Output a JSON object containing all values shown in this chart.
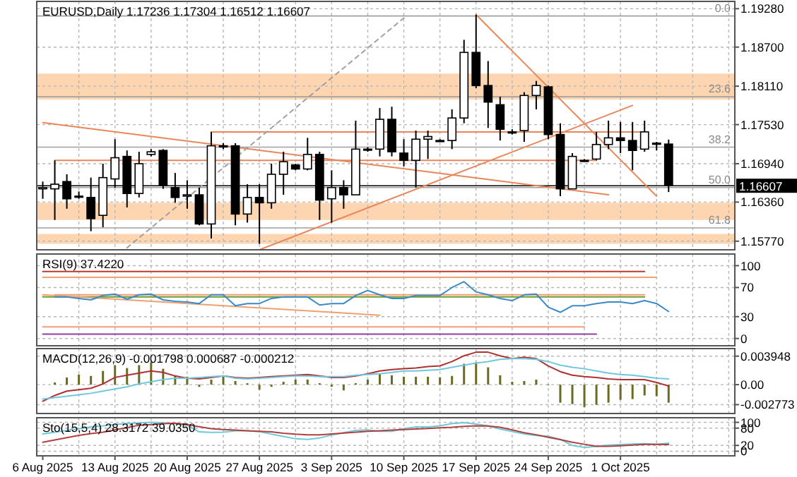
{
  "chart_data": [
    {
      "type": "candlestick",
      "title": "EURUSD,Daily 1.17236 1.17304 1.16512 1.16607",
      "categories": [
        null,
        null,
        null,
        null,
        null,
        null,
        null,
        null,
        null,
        null,
        null,
        null,
        null,
        null,
        null,
        null,
        null,
        null,
        null,
        null,
        null,
        null,
        null,
        null,
        null,
        null,
        null,
        null,
        null,
        null,
        null,
        null,
        null,
        null,
        null,
        null,
        null,
        null,
        null,
        null,
        null,
        null,
        null,
        null,
        null,
        null,
        null,
        null,
        null,
        null,
        null,
        null,
        null,
        null,
        null,
        null,
        null,
        null
      ],
      "ohlc": [
        [
          1.1656,
          1.1667,
          1.1641,
          1.1658
        ],
        [
          1.1656,
          1.1699,
          1.1609,
          1.1663
        ],
        [
          1.1667,
          1.1678,
          1.1626,
          1.1641
        ],
        [
          1.1645,
          1.1652,
          1.1641,
          1.1645
        ],
        [
          1.1643,
          1.1673,
          1.1592,
          1.1611
        ],
        [
          1.1616,
          1.1694,
          1.1598,
          1.1673
        ],
        [
          1.1671,
          1.1731,
          1.1658,
          1.1703
        ],
        [
          1.1705,
          1.1714,
          1.1628,
          1.1649
        ],
        [
          1.1649,
          1.1712,
          1.1643,
          1.1694
        ],
        [
          1.1708,
          1.1716,
          1.1705,
          1.1712
        ],
        [
          1.1714,
          1.1716,
          1.1656,
          1.1661
        ],
        [
          1.1658,
          1.168,
          1.1635,
          1.1643
        ],
        [
          1.1645,
          1.1669,
          1.1626,
          1.1647
        ],
        [
          1.1647,
          1.1658,
          1.1601,
          1.1603
        ],
        [
          1.1603,
          1.1742,
          1.1581,
          1.1721
        ],
        [
          1.1721,
          1.1725,
          1.1716,
          1.1721
        ],
        [
          1.1721,
          1.1725,
          1.1601,
          1.1618
        ],
        [
          1.1618,
          1.1663,
          1.1605,
          1.1643
        ],
        [
          1.1643,
          1.1663,
          1.1573,
          1.1635
        ],
        [
          1.1635,
          1.1694,
          1.1626,
          1.1678
        ],
        [
          1.1678,
          1.1712,
          1.1647,
          1.1697
        ],
        [
          1.1692,
          1.1694,
          1.1684,
          1.1686
        ],
        [
          1.1686,
          1.1733,
          1.1684,
          1.1708
        ],
        [
          1.1708,
          1.1712,
          1.1609,
          1.1639
        ],
        [
          1.1641,
          1.1684,
          1.1605,
          1.1658
        ],
        [
          1.1658,
          1.1669,
          1.1626,
          1.1647
        ],
        [
          1.1647,
          1.1759,
          1.1647,
          1.1716
        ],
        [
          1.1716,
          1.1719,
          1.1712,
          1.1716
        ],
        [
          1.1716,
          1.1778,
          1.1705,
          1.1761
        ],
        [
          1.1761,
          1.178,
          1.1705,
          1.1712
        ],
        [
          1.171,
          1.1731,
          1.169,
          1.1699
        ],
        [
          1.1699,
          1.1744,
          1.1658,
          1.1731
        ],
        [
          1.1731,
          1.1744,
          1.1701,
          1.1735
        ],
        [
          1.1729,
          1.1731,
          1.1727,
          1.1729
        ],
        [
          1.1729,
          1.1776,
          1.1716,
          1.1763
        ],
        [
          1.1763,
          1.1881,
          1.1755,
          1.1862
        ],
        [
          1.1862,
          1.1919,
          1.1808,
          1.1812
        ],
        [
          1.1812,
          1.1849,
          1.1748,
          1.1787
        ],
        [
          1.1783,
          1.1795,
          1.1729,
          1.1746
        ],
        [
          1.1742,
          1.1746,
          1.1738,
          1.1742
        ],
        [
          1.1744,
          1.1802,
          1.1727,
          1.1797
        ],
        [
          1.1797,
          1.1819,
          1.1776,
          1.1812
        ],
        [
          1.181,
          1.1812,
          1.1731,
          1.1738
        ],
        [
          1.1738,
          1.1755,
          1.1645,
          1.1656
        ],
        [
          1.1656,
          1.171,
          1.1656,
          1.1705
        ],
        [
          1.1699,
          1.1701,
          1.1697,
          1.1699
        ],
        [
          1.1701,
          1.1742,
          1.1699,
          1.1723
        ],
        [
          1.1723,
          1.1759,
          1.1716,
          1.1733
        ],
        [
          1.1733,
          1.1757,
          1.171,
          1.1729
        ],
        [
          1.1729,
          1.1757,
          1.1684,
          1.1714
        ],
        [
          1.1716,
          1.1759,
          1.1712,
          1.1742
        ],
        [
          1.1725,
          1.1727,
          1.1714,
          1.1725
        ],
        [
          1.17236,
          1.17304,
          1.16512,
          1.16607
        ],
        null,
        null,
        null,
        null,
        null
      ],
      "ylim": [
        1.1564,
        1.1939
      ],
      "yticks": [
        {
          "value": 1.1928,
          "label": "1.19280"
        },
        {
          "value": 1.187,
          "label": "1.18700"
        },
        {
          "value": 1.1811,
          "label": "1.18110"
        },
        {
          "value": 1.1753,
          "label": "1.17530"
        },
        {
          "value": 1.1694,
          "label": "1.16940"
        },
        {
          "value": 1.1636,
          "label": "1.16360"
        },
        {
          "value": 1.1577,
          "label": "1.15770"
        }
      ],
      "grid": true,
      "tick_labels": "y",
      "bands": [
        {
          "axis": "y",
          "from": 1.1791,
          "to": 1.183,
          "color": "#fdd5b1"
        },
        {
          "axis": "y",
          "from": 1.1609,
          "to": 1.1635,
          "color": "#fdd5b1"
        },
        {
          "axis": "y",
          "from": 1.1573,
          "to": 1.1588,
          "color": "#fdd5b1"
        }
      ],
      "ref_lines": [
        {
          "axis": "y",
          "value": 1.1917,
          "color": "#a0a0a0"
        },
        {
          "axis": "y",
          "value": 1.1795,
          "color": "#a0a0a0"
        },
        {
          "axis": "y",
          "value": 1.1719,
          "color": "#a0a0a0"
        },
        {
          "axis": "y",
          "value": 1.1658,
          "color": "#a0a0a0"
        },
        {
          "axis": "y",
          "value": 1.1597,
          "color": "#a0a0a0"
        },
        {
          "axis": "y",
          "value": 1.16607,
          "label": "1.16607",
          "color": "#000000"
        }
      ],
      "annotations": [
        {
          "text": "0.0",
          "y": 1.1917
        },
        {
          "text": "23.6",
          "y": 1.1795
        },
        {
          "text": "38.2",
          "y": 1.1719
        },
        {
          "text": "50.0",
          "y": 1.1658
        },
        {
          "text": "61.8",
          "y": 1.1597
        }
      ],
      "series": [
        {
          "type": "line",
          "color": "#e8875a",
          "values": [
            1.1756,
            null,
            null,
            null,
            null,
            null,
            null,
            null,
            null,
            null,
            null,
            null,
            null,
            null,
            null,
            null,
            null,
            null,
            null,
            null,
            null,
            null,
            null,
            null,
            null,
            null,
            null,
            null,
            null,
            null,
            null,
            null,
            null,
            null,
            null,
            null,
            null,
            null,
            null,
            null,
            null,
            null,
            null,
            null,
            null,
            null,
            null,
            1.1647,
            null,
            null,
            null,
            null,
            null,
            null,
            null,
            null,
            null,
            null
          ]
        },
        {
          "type": "line",
          "color": "#e8875a",
          "values": [
            null,
            null,
            null,
            null,
            null,
            null,
            null,
            null,
            null,
            null,
            null,
            null,
            null,
            null,
            null,
            null,
            null,
            null,
            1.1564,
            null,
            null,
            null,
            null,
            null,
            null,
            null,
            null,
            null,
            null,
            null,
            null,
            null,
            null,
            null,
            null,
            null,
            null,
            null,
            null,
            null,
            null,
            null,
            null,
            null,
            null,
            null,
            null,
            null,
            null,
            1.1782,
            null,
            null,
            null,
            null,
            null,
            null,
            null,
            null
          ]
        },
        {
          "type": "line",
          "color": "#e8875a",
          "values": [
            null,
            null,
            null,
            null,
            null,
            null,
            null,
            null,
            null,
            null,
            null,
            null,
            null,
            null,
            null,
            null,
            null,
            null,
            null,
            null,
            null,
            null,
            null,
            null,
            null,
            null,
            null,
            null,
            null,
            null,
            null,
            null,
            null,
            null,
            null,
            null,
            1.1919,
            null,
            null,
            null,
            null,
            null,
            null,
            null,
            null,
            null,
            null,
            null,
            null,
            null,
            null,
            1.1645,
            null,
            null,
            null,
            null,
            null,
            null
          ]
        },
        {
          "type": "line",
          "color": "#e8875a",
          "values": [
            null,
            null,
            null,
            null,
            null,
            null,
            null,
            null,
            null,
            null,
            null,
            null,
            null,
            null,
            1.1742,
            null,
            null,
            null,
            null,
            null,
            null,
            null,
            null,
            null,
            null,
            null,
            null,
            null,
            null,
            null,
            null,
            null,
            null,
            null,
            null,
            null,
            null,
            null,
            null,
            null,
            null,
            null,
            null,
            null,
            null,
            null,
            null,
            null,
            null,
            null,
            1.1742,
            null,
            null,
            null,
            null,
            null,
            null,
            null
          ]
        },
        {
          "type": "line",
          "color": "#e8875a",
          "values": [
            null,
            1.1699,
            null,
            null,
            null,
            null,
            null,
            null,
            null,
            null,
            null,
            null,
            null,
            null,
            null,
            null,
            null,
            null,
            null,
            null,
            null,
            null,
            null,
            null,
            null,
            null,
            null,
            null,
            null,
            null,
            null,
            null,
            null,
            null,
            null,
            null,
            null,
            null,
            null,
            null,
            null,
            null,
            null,
            null,
            null,
            null,
            1.1699,
            null,
            null,
            null,
            null,
            null,
            null,
            null,
            null,
            null,
            null,
            null
          ]
        },
        {
          "type": "line",
          "color": "#a0a0a0",
          "line_style": "dashed",
          "values": [
            null,
            null,
            null,
            null,
            null,
            null,
            null,
            1.1567,
            null,
            null,
            null,
            null,
            null,
            null,
            null,
            null,
            null,
            null,
            null,
            null,
            null,
            null,
            null,
            null,
            null,
            null,
            null,
            null,
            null,
            null,
            1.1914,
            null,
            null,
            null,
            null,
            null,
            null,
            null,
            null,
            null,
            null,
            null,
            null,
            null,
            null,
            null,
            null,
            null,
            null,
            null,
            null,
            null,
            null,
            null,
            null,
            null,
            null,
            null
          ]
        }
      ]
    },
    {
      "type": "line",
      "title": "RSI(9) 37.4220",
      "categories": [
        null,
        null,
        null,
        null,
        null,
        null,
        null,
        null,
        null,
        null,
        null,
        null,
        null,
        null,
        null,
        null,
        null,
        null,
        null,
        null,
        null,
        null,
        null,
        null,
        null,
        null,
        null,
        null,
        null,
        null,
        null,
        null,
        null,
        null,
        null,
        null,
        null,
        null,
        null,
        null,
        null,
        null,
        null,
        null,
        null,
        null,
        null,
        null,
        null,
        null,
        null,
        null,
        null,
        null,
        null,
        null,
        null,
        null
      ],
      "ylim": [
        -10,
        116
      ],
      "yticks": [
        100,
        70,
        30,
        0
      ],
      "grid": true,
      "tick_labels": "y",
      "series": [
        {
          "color": "#c0392b",
          "values": [
            92,
            null,
            null,
            null,
            null,
            null,
            null,
            null,
            null,
            null,
            null,
            null,
            null,
            null,
            null,
            null,
            null,
            null,
            null,
            null,
            null,
            null,
            null,
            null,
            null,
            null,
            null,
            null,
            null,
            null,
            null,
            null,
            null,
            null,
            null,
            null,
            null,
            null,
            null,
            null,
            null,
            null,
            null,
            null,
            null,
            null,
            null,
            null,
            null,
            null,
            92,
            null,
            null,
            null,
            null,
            null,
            null,
            null
          ]
        },
        {
          "color": "#f0a070",
          "values": [
            84,
            null,
            null,
            null,
            null,
            null,
            null,
            null,
            null,
            null,
            null,
            null,
            null,
            null,
            null,
            null,
            null,
            null,
            null,
            null,
            null,
            null,
            null,
            null,
            null,
            null,
            null,
            null,
            null,
            null,
            null,
            null,
            null,
            null,
            null,
            null,
            null,
            null,
            null,
            null,
            null,
            null,
            null,
            null,
            null,
            null,
            null,
            null,
            null,
            null,
            null,
            84,
            null,
            null,
            null,
            null,
            null,
            null
          ]
        },
        {
          "color": "#f0a070",
          "values": [
            16,
            null,
            null,
            null,
            null,
            null,
            null,
            null,
            null,
            null,
            null,
            null,
            null,
            null,
            null,
            null,
            null,
            null,
            null,
            null,
            null,
            null,
            null,
            null,
            null,
            null,
            null,
            null,
            null,
            null,
            null,
            null,
            null,
            null,
            null,
            null,
            null,
            null,
            null,
            null,
            null,
            null,
            null,
            null,
            null,
            16,
            null,
            null,
            null,
            null,
            null,
            null,
            null,
            null,
            null,
            null,
            null,
            null
          ]
        },
        {
          "color": "#9040a0",
          "values": [
            6,
            null,
            null,
            null,
            null,
            null,
            null,
            null,
            null,
            null,
            null,
            null,
            null,
            null,
            null,
            null,
            null,
            null,
            null,
            null,
            null,
            null,
            null,
            null,
            null,
            null,
            null,
            null,
            null,
            null,
            null,
            null,
            null,
            null,
            null,
            null,
            null,
            null,
            null,
            null,
            null,
            null,
            null,
            null,
            null,
            null,
            6,
            null,
            null,
            null,
            null,
            null,
            null,
            null,
            null,
            null,
            null,
            null
          ]
        },
        {
          "color": "#6a9a30",
          "values": [
            57,
            null,
            null,
            null,
            null,
            null,
            null,
            null,
            null,
            null,
            null,
            null,
            null,
            null,
            null,
            null,
            null,
            null,
            null,
            null,
            null,
            null,
            null,
            null,
            null,
            null,
            null,
            null,
            null,
            null,
            null,
            null,
            null,
            null,
            null,
            null,
            null,
            null,
            null,
            null,
            null,
            null,
            null,
            null,
            null,
            null,
            null,
            null,
            null,
            null,
            57,
            null,
            null,
            null,
            null,
            null,
            null,
            null
          ]
        },
        {
          "color": "#f0a070",
          "values": [
            null,
            60,
            null,
            null,
            null,
            null,
            null,
            null,
            null,
            null,
            null,
            null,
            null,
            null,
            null,
            null,
            null,
            null,
            null,
            null,
            null,
            null,
            null,
            null,
            null,
            null,
            null,
            null,
            null,
            null,
            null,
            null,
            null,
            null,
            null,
            null,
            null,
            null,
            null,
            null,
            null,
            null,
            null,
            null,
            null,
            null,
            null,
            null,
            null,
            null,
            60,
            null,
            null,
            null,
            null,
            null,
            null,
            null
          ]
        },
        {
          "color": "#f0a070",
          "values": [
            60,
            null,
            null,
            null,
            null,
            null,
            null,
            null,
            null,
            null,
            null,
            null,
            null,
            null,
            null,
            null,
            null,
            null,
            null,
            null,
            null,
            null,
            null,
            null,
            null,
            null,
            null,
            null,
            32,
            null,
            null,
            null,
            null,
            null,
            null,
            null,
            null,
            null,
            null,
            null,
            null,
            null,
            null,
            null,
            null,
            null,
            null,
            null,
            null,
            null,
            null,
            null,
            null,
            null,
            null,
            null,
            null,
            null
          ]
        },
        {
          "color": "#3a8ac8",
          "values": [
            null,
            57,
            57,
            55,
            53,
            59,
            61,
            54,
            60,
            61,
            53,
            51,
            50,
            48,
            60,
            60,
            45,
            48,
            48,
            55,
            57,
            57,
            57,
            46,
            48,
            48,
            59,
            66,
            60,
            55,
            55,
            59,
            59,
            59,
            70,
            78,
            64,
            60,
            55,
            52,
            60,
            61,
            43,
            36,
            45,
            45,
            48,
            50,
            50,
            48,
            52,
            48,
            37,
            null,
            null,
            null,
            null,
            null
          ]
        }
      ]
    },
    {
      "type": "bar",
      "title": "MACD(12,26,9) -0.001798 0.000687 -0.000212",
      "categories": [
        null,
        null,
        null,
        null,
        null,
        null,
        null,
        null,
        null,
        null,
        null,
        null,
        null,
        null,
        null,
        null,
        null,
        null,
        null,
        null,
        null,
        null,
        null,
        null,
        null,
        null,
        null,
        null,
        null,
        null,
        null,
        null,
        null,
        null,
        null,
        null,
        null,
        null,
        null,
        null,
        null,
        null,
        null,
        null,
        null,
        null,
        null,
        null,
        null,
        null,
        null,
        null,
        null,
        null,
        null,
        null,
        null,
        null
      ],
      "ylim": [
        -0.004,
        0.005
      ],
      "yticks": [
        {
          "value": 0.003948,
          "label": "0.003948"
        },
        {
          "value": 0,
          "label": "0.00"
        },
        {
          "value": -0.002773,
          "label": "-0.002773"
        }
      ],
      "grid": true,
      "tick_labels": "y",
      "series": [
        {
          "color": "#6b6b23",
          "values": [
            null,
            0.0003,
            0.001,
            0.0014,
            0.0012,
            0.0019,
            0.0027,
            0.0023,
            0.0027,
            0.0031,
            0.0022,
            0.0013,
            0.0011,
            -0.0003,
            0.0007,
            0.0011,
            0.0005,
            0.0002,
            -0.0007,
            -0.0003,
            0.0004,
            0.0007,
            0.0007,
            0.0002,
            -0.0003,
            -0.0008,
            0.0002,
            0.0007,
            0.0015,
            0.0013,
            0.0011,
            0.0011,
            0.0011,
            0.001,
            0.0012,
            0.0029,
            0.0031,
            0.0024,
            0.0013,
            0.0004,
            0.0005,
            0.0007,
            0,
            -0.0025,
            -0.0027,
            -0.0031,
            -0.0028,
            -0.0025,
            -0.0021,
            -0.002,
            -0.0015,
            -0.0016,
            -0.0025,
            null,
            null,
            null,
            null,
            null
          ]
        },
        {
          "type": "line",
          "color": "#b03030",
          "values": [
            -0.0023,
            -0.0015,
            -0.0009,
            -0.0007,
            -0.0005,
            0.0001,
            0.001,
            0.0013,
            0.0016,
            0.0019,
            0.0017,
            0.0012,
            0.0009,
            0.0008,
            0.001,
            0.0012,
            0.001,
            0.0009,
            0.001,
            0.0011,
            0.0012,
            0.0013,
            0.0014,
            0.0012,
            0.001,
            0.001,
            0.0012,
            0.0015,
            0.0019,
            0.0021,
            0.0022,
            0.0023,
            0.0025,
            0.0026,
            0.0032,
            0.004,
            0.0045,
            0.0045,
            0.004,
            0.0036,
            0.0038,
            0.0036,
            0.0026,
            0.0018,
            0.0013,
            0.0011,
            0.001,
            0.0008,
            0.0007,
            0.0007,
            0.0007,
            0.0003,
            -0.0002,
            null,
            null,
            null,
            null,
            null
          ]
        },
        {
          "type": "line",
          "color": "#70c8e0",
          "values": [
            -0.002,
            -0.0018,
            -0.0016,
            -0.0014,
            -0.0012,
            -0.0009,
            -0.0006,
            -0.0003,
            0.0001,
            0.0004,
            0.0007,
            0.0009,
            0.0009,
            0.001,
            0.0011,
            0.0012,
            0.0009,
            0.0008,
            0.0009,
            0.001,
            0.0011,
            0.0012,
            0.0012,
            0.0011,
            0.0011,
            0.0011,
            0.0013,
            0.0014,
            0.0015,
            0.0017,
            0.0019,
            0.0019,
            0.002,
            0.0021,
            0.0024,
            0.0027,
            0.003,
            0.0032,
            0.0035,
            0.0036,
            0.0036,
            0.0035,
            0.0032,
            0.0027,
            0.0024,
            0.0022,
            0.0019,
            0.0016,
            0.0014,
            0.0013,
            0.0011,
            0.0009,
            0.0008,
            null,
            null,
            null,
            null,
            null
          ]
        }
      ]
    },
    {
      "type": "line",
      "title": "Sto(15,5,4) 28.3172 39.0350",
      "categories": [
        "6 Aug 2025",
        null,
        null,
        null,
        null,
        null,
        "13 Aug 2025",
        null,
        null,
        null,
        null,
        null,
        "20 Aug 2025",
        null,
        null,
        null,
        null,
        null,
        "27 Aug 2025",
        null,
        null,
        null,
        null,
        null,
        "3 Sep 2025",
        null,
        null,
        null,
        null,
        null,
        "10 Sep 2025",
        null,
        null,
        null,
        null,
        null,
        "17 Sep 2025",
        null,
        null,
        null,
        null,
        null,
        "24 Sep 2025",
        null,
        null,
        null,
        null,
        null,
        "1 Oct 2025",
        null,
        null,
        null,
        null,
        null,
        null,
        null,
        null,
        null
      ],
      "ylim": [
        -16,
        116
      ],
      "yticks": [
        100,
        80,
        20,
        0
      ],
      "grid": true,
      "series": [
        {
          "color": "#70c8d8",
          "values": [
            60,
            66,
            72,
            78,
            84,
            88,
            93,
            96,
            98,
            100,
            98,
            96,
            90,
            67,
            65,
            66,
            71,
            71,
            68,
            59,
            51,
            43,
            41,
            46,
            56,
            64,
            72,
            74,
            69,
            69,
            78,
            84,
            84,
            88,
            96,
            99,
            94,
            88,
            77,
            68,
            60,
            54,
            52,
            41,
            20,
            13,
            17,
            21,
            23,
            25,
            26,
            24,
            28,
            null,
            null,
            null,
            null,
            null
          ]
        },
        {
          "color": "#b04040",
          "values": [
            31,
            39,
            47,
            55,
            61,
            66,
            74,
            82,
            90,
            92,
            95,
            97,
            92,
            85,
            78,
            75,
            73,
            71,
            69,
            67,
            62,
            59,
            57,
            57,
            60,
            63,
            66,
            69,
            71,
            73,
            75,
            77,
            79,
            81,
            83,
            86,
            88,
            87,
            83,
            74,
            64,
            57,
            48,
            40,
            31,
            24,
            17,
            17,
            19,
            21,
            24,
            24,
            23,
            null,
            null,
            null,
            null,
            null
          ]
        }
      ]
    }
  ]
}
